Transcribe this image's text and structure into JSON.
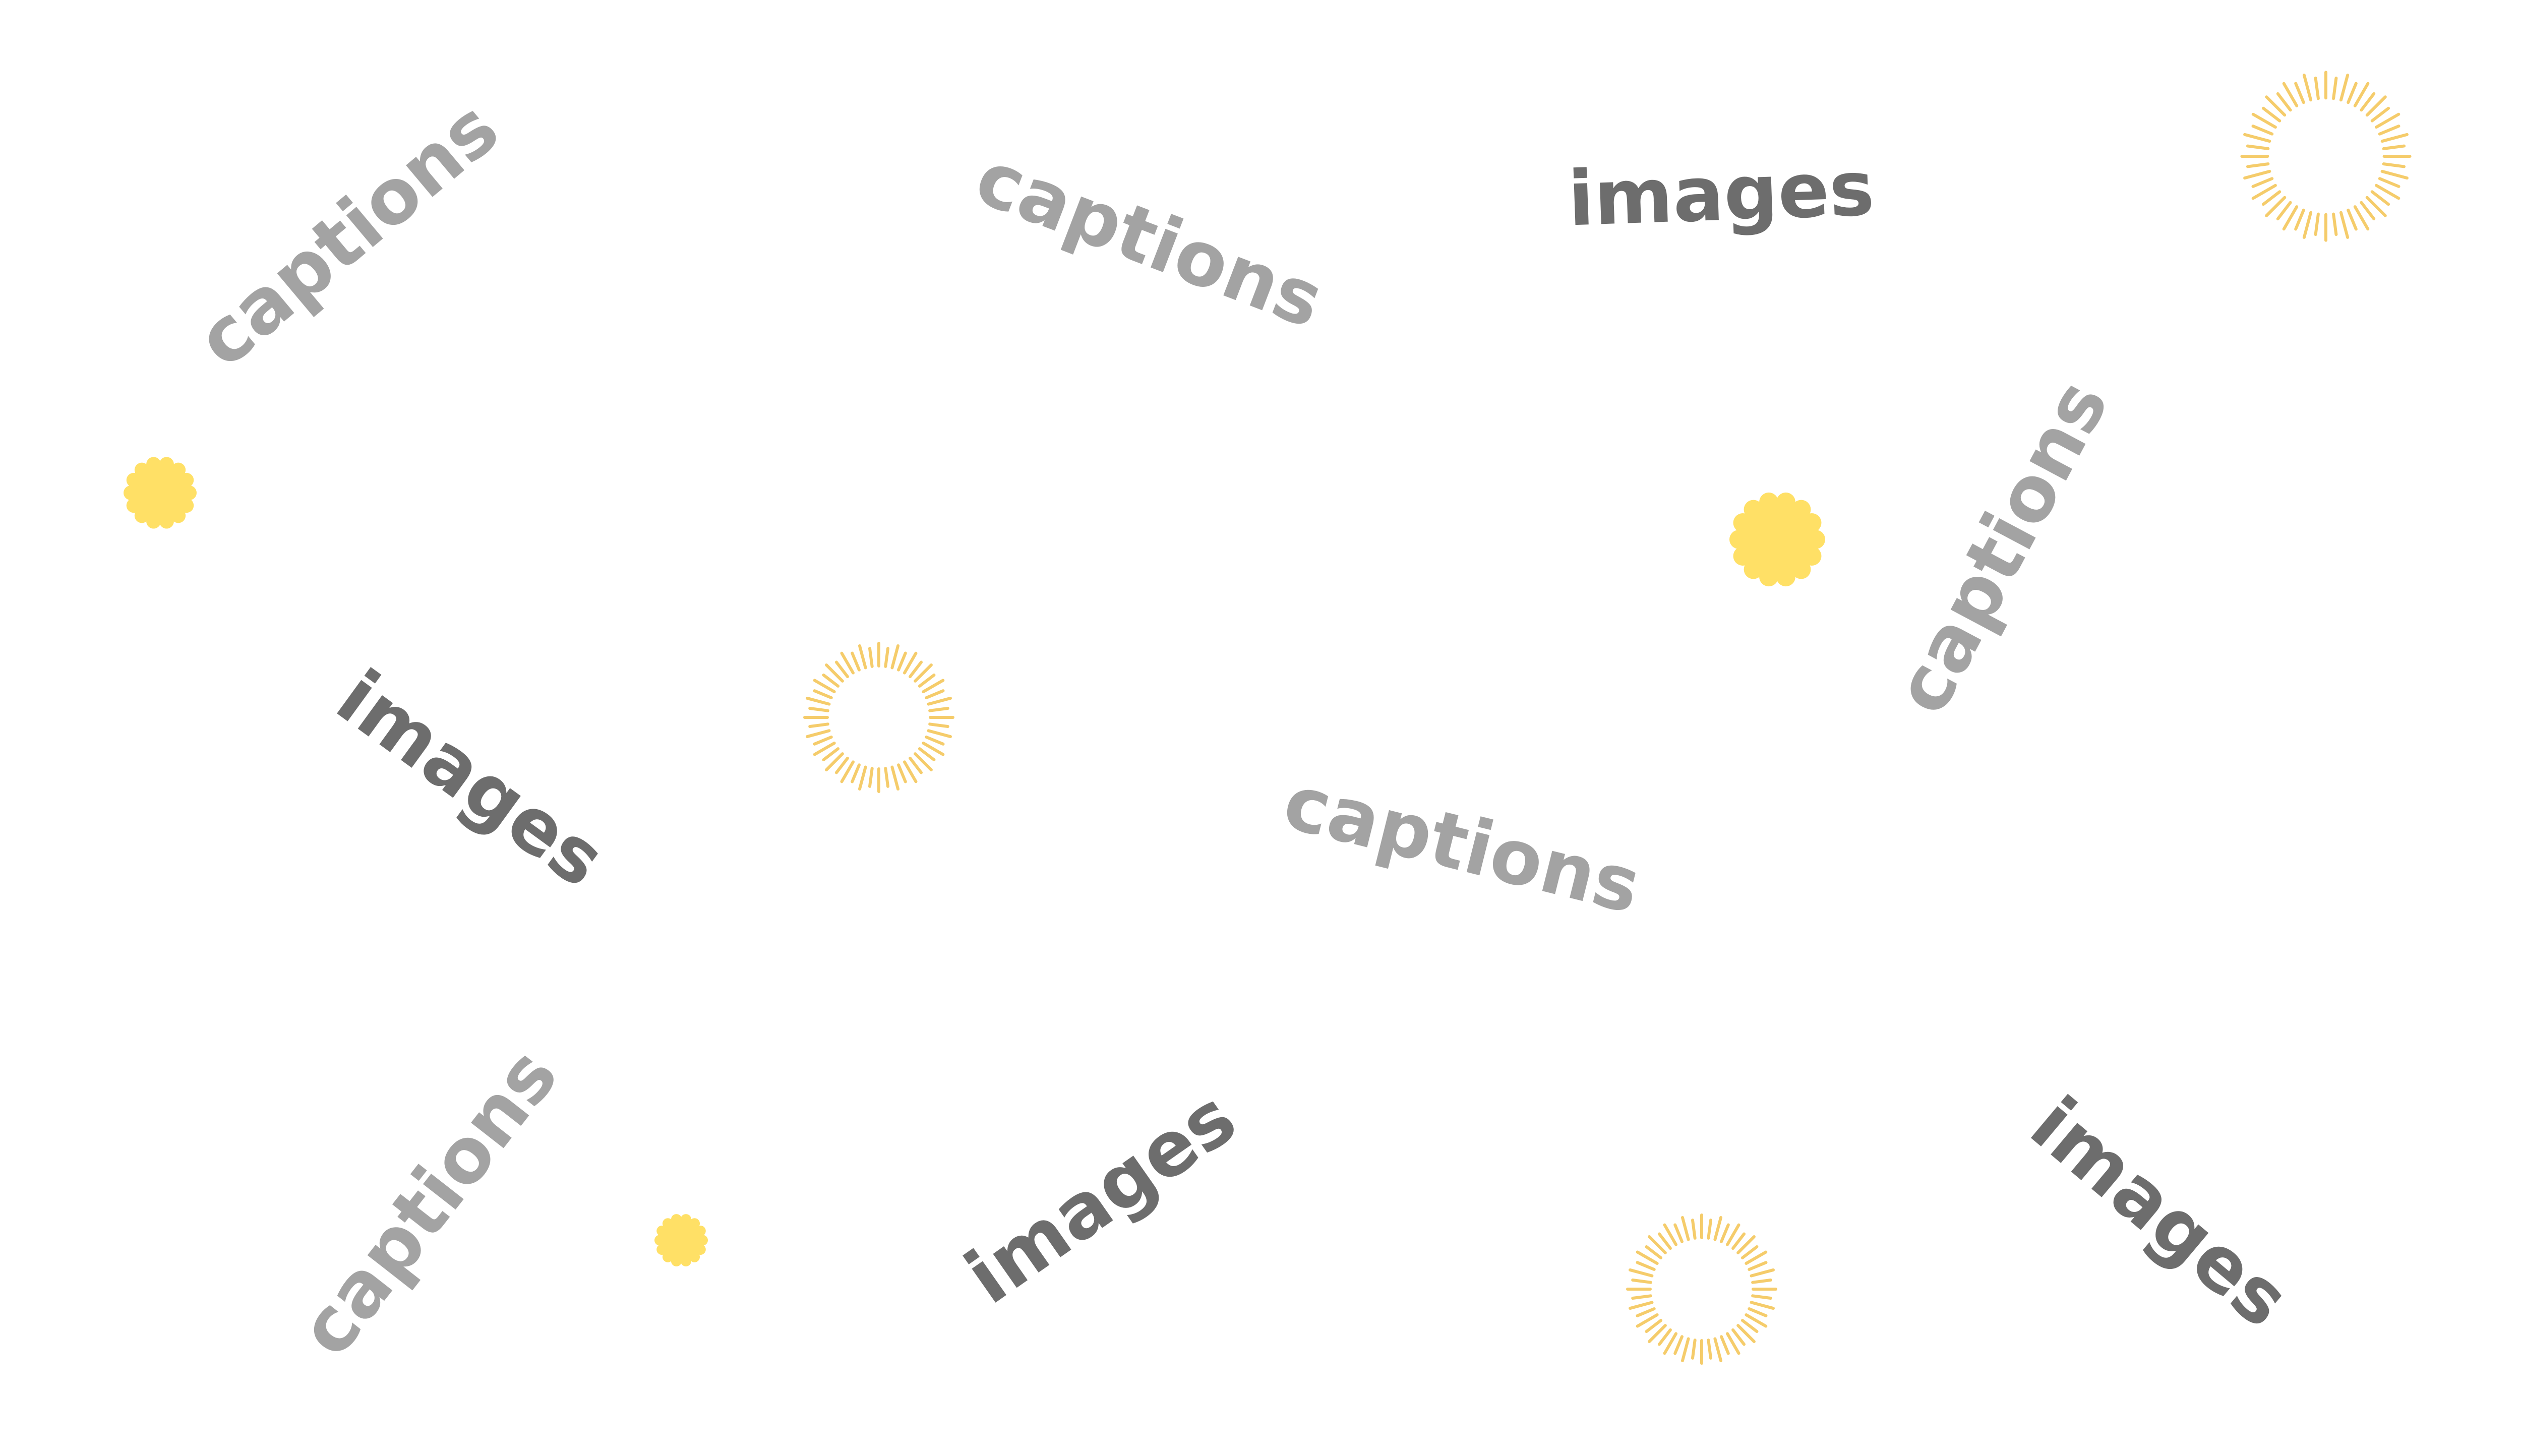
{
  "colors": {
    "caption_text": "#a3a3a3",
    "image_text": "#6d6d6d",
    "blob": "#ffe066",
    "burst": "#f5cc6b"
  },
  "words": {
    "captions_1": "captions",
    "captions_2": "captions",
    "captions_3": "captions",
    "captions_4": "captions",
    "captions_5": "captions",
    "images_1": "images",
    "images_2": "images",
    "images_3": "images",
    "images_4": "images"
  },
  "icons": {
    "blob": "yellow-scalloped-circle",
    "burst": "sunburst-ring"
  }
}
